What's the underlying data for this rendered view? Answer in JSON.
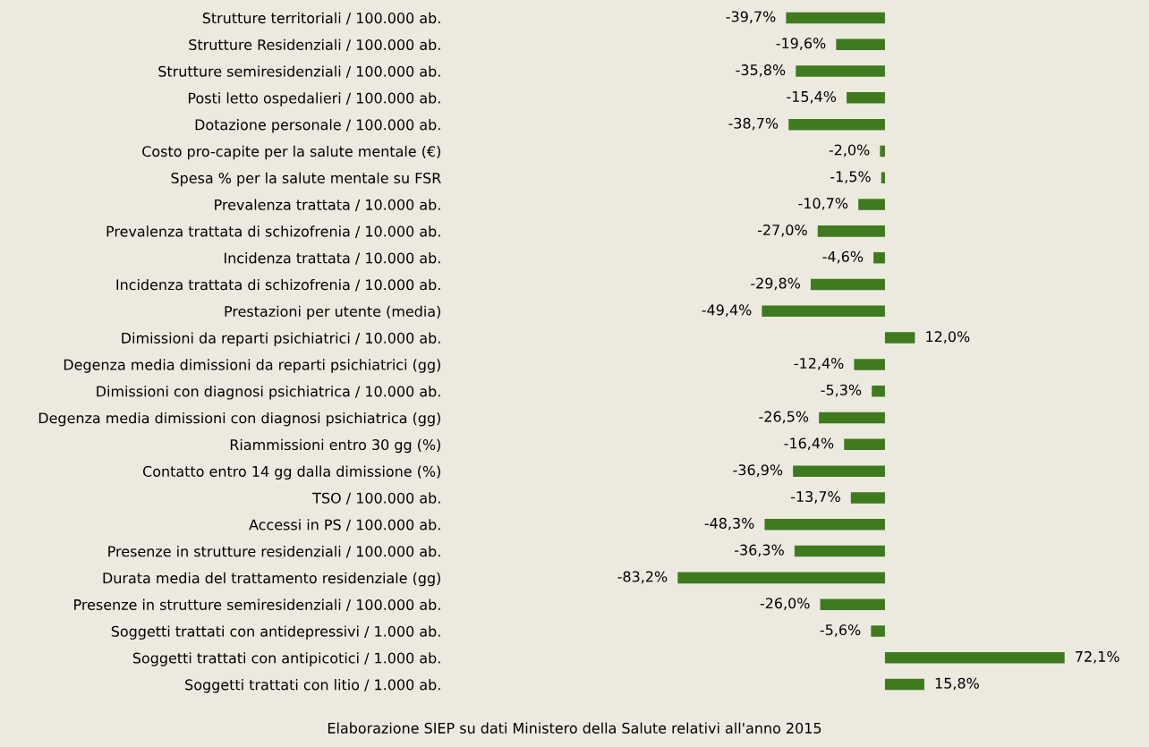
{
  "chart_data": {
    "type": "bar",
    "orientation": "horizontal",
    "color": "#3f7a1f",
    "categories": [
      "Strutture territoriali / 100.000 ab.",
      "Strutture Residenziali / 100.000 ab.",
      "Strutture semiresidenziali / 100.000 ab.",
      "Posti letto ospedalieri / 100.000 ab.",
      "Dotazione personale / 100.000 ab.",
      "Costo pro-capite per la salute mentale (€)",
      "Spesa % per la salute mentale su FSR",
      "Prevalenza trattata / 10.000 ab.",
      "Prevalenza trattata di schizofrenia / 10.000 ab.",
      "Incidenza trattata / 10.000 ab.",
      "Incidenza trattata di schizofrenia / 10.000 ab.",
      "Prestazioni per utente (media)",
      "Dimissioni da reparti psichiatrici / 10.000 ab.",
      "Degenza media dimissioni da reparti psichiatrici (gg)",
      "Dimissioni con diagnosi psichiatrica / 10.000 ab.",
      "Degenza media dimissioni con diagnosi psichiatrica (gg)",
      "Riammissioni entro 30 gg (%)",
      "Contatto entro 14 gg dalla dimissione (%)",
      "TSO / 100.000 ab.",
      "Accessi in PS / 100.000 ab.",
      "Presenze in strutture residenziali / 100.000 ab.",
      "Durata media del trattamento residenziale (gg)",
      "Presenze in strutture semiresidenziali / 100.000 ab.",
      "Soggetti trattati con antidepressivi / 1.000 ab.",
      "Soggetti trattati con antipicotici / 1.000 ab.",
      "Soggetti trattati con litio / 1.000 ab."
    ],
    "values": [
      -39.7,
      -19.6,
      -35.8,
      -15.4,
      -38.7,
      -2.0,
      -1.5,
      -10.7,
      -27.0,
      -4.6,
      -29.8,
      -49.4,
      12.0,
      -12.4,
      -5.3,
      -26.5,
      -16.4,
      -36.9,
      -13.7,
      -48.3,
      -36.3,
      -83.2,
      -26.0,
      -5.6,
      72.1,
      15.8
    ],
    "value_labels": [
      "-39,7%",
      "-19,6%",
      "-35,8%",
      "-15,4%",
      "-38,7%",
      "-2,0%",
      "-1,5%",
      "-10,7%",
      "-27,0%",
      "-4,6%",
      "-29,8%",
      "-49,4%",
      "12,0%",
      "-12,4%",
      "-5,3%",
      "-26,5%",
      "-16,4%",
      "-36,9%",
      "-13,7%",
      "-48,3%",
      "-36,3%",
      "-83,2%",
      "-26,0%",
      "-5,6%",
      "72,1%",
      "15,8%"
    ],
    "annotations": [
      "Elaborazione SIEP su dati Ministero della Salute relativi all'anno 2015"
    ],
    "grid": false,
    "legend": false
  }
}
